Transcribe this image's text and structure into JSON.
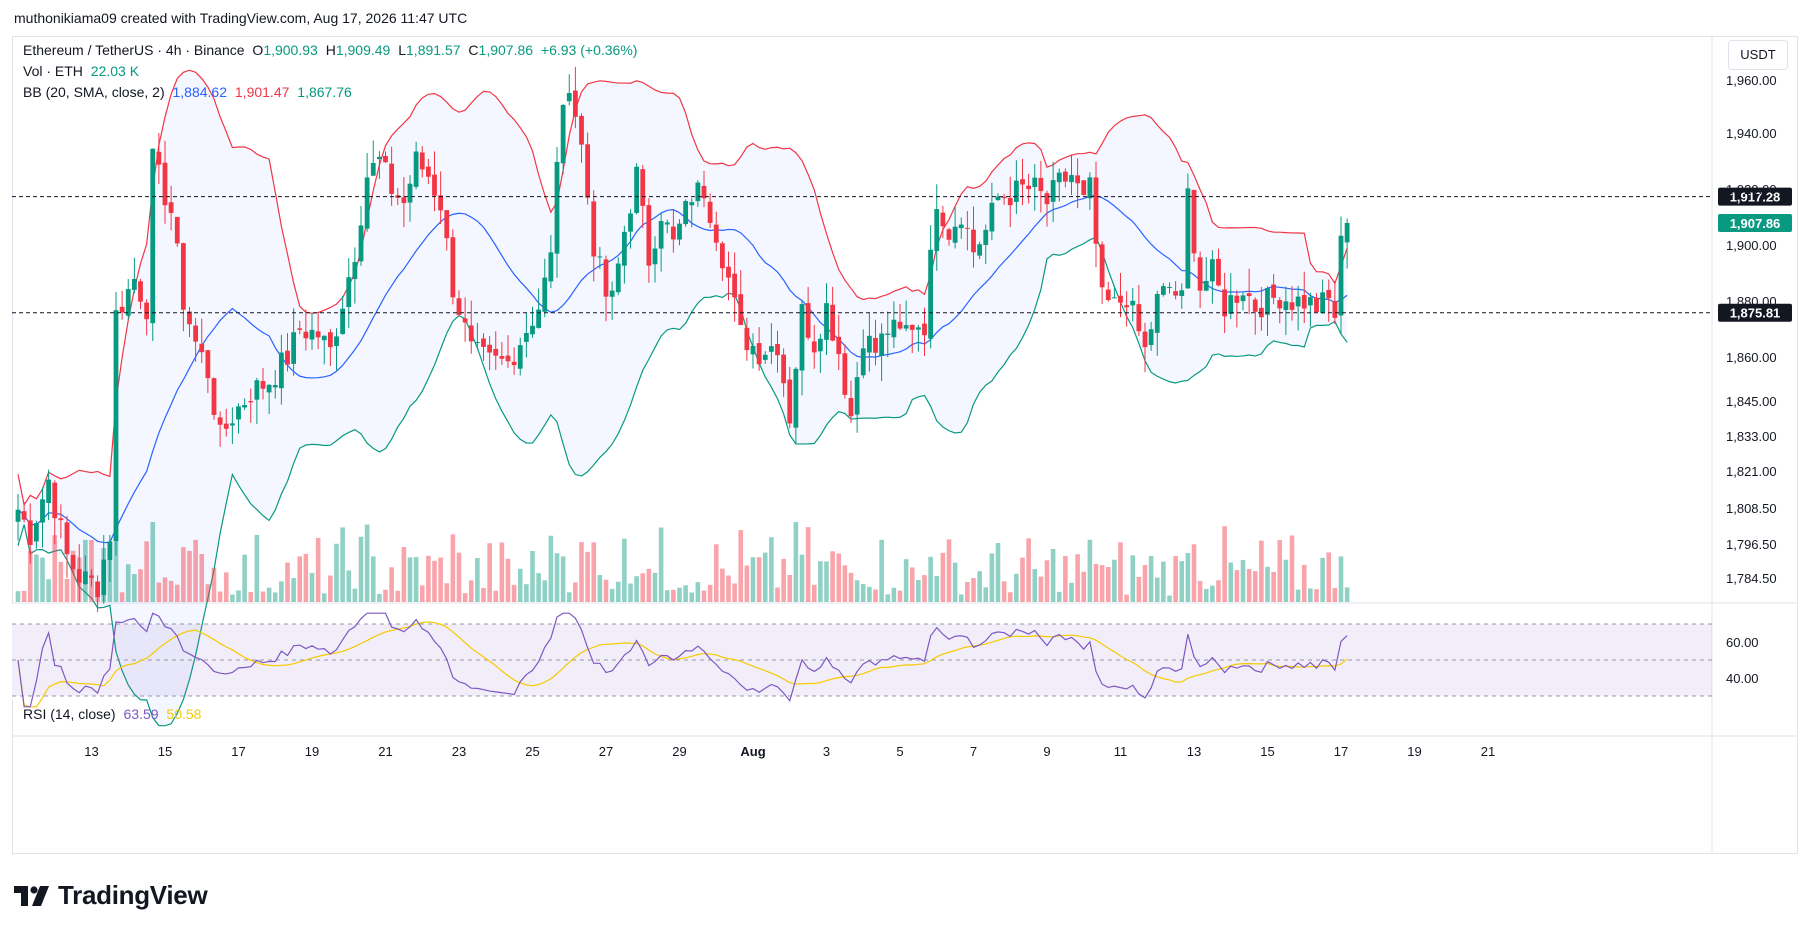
{
  "header": {
    "byline": "muthonikiama09 created with TradingView.com, Aug 17, 2026 11:47 UTC"
  },
  "legend": {
    "symbol": "Ethereum / TetherUS · 4h · Binance",
    "o_label": "O",
    "o_value": "1,900.93",
    "h_label": "H",
    "h_value": "1,909.49",
    "l_label": "L",
    "l_value": "1,891.57",
    "c_label": "C",
    "c_value": "1,907.86",
    "change": "+6.93 (+0.36%)",
    "vol_label": "Vol · ETH",
    "vol_value": "22.03 K",
    "bb_label": "BB (20, SMA, close, 2)",
    "bb_basis": "1,884.62",
    "bb_upper": "1,901.47",
    "bb_lower": "1,867.76",
    "rsi_label": "RSI (14, close)",
    "rsi_value": "63.59",
    "rsi_ma": "50.58"
  },
  "toolbar": {
    "currency": "USDT"
  },
  "footer": {
    "brand": "TradingView"
  },
  "colors": {
    "up": "#089981",
    "down": "#f23645",
    "bb_basis": "#2962ff",
    "bb_upper": "#f23645",
    "bb_lower": "#089981",
    "rsi": "#7e57c2",
    "rsi_ma": "#f7c900"
  },
  "chart_data": {
    "type": "candlestick",
    "price_axis": {
      "labels": [
        "1,960.00",
        "1,940.00",
        "1,920.00",
        "1,900.00",
        "1,880.00",
        "1,860.00",
        "1,845.00",
        "1,833.00",
        "1,821.00",
        "1,808.50",
        "1,796.50",
        "1,784.50"
      ],
      "values": [
        1960,
        1940,
        1920,
        1900,
        1880,
        1860,
        1845,
        1833,
        1821,
        1808.5,
        1796.5,
        1784.5
      ],
      "scale": "log"
    },
    "time_axis": {
      "labels": [
        "13",
        "15",
        "17",
        "19",
        "21",
        "23",
        "25",
        "27",
        "29",
        "Aug",
        "3",
        "5",
        "7",
        "9",
        "11",
        "13",
        "15",
        "17",
        "19",
        "21"
      ],
      "bar_index": [
        12,
        24,
        36,
        48,
        60,
        72,
        84,
        96,
        108,
        120,
        132,
        144,
        156,
        168,
        180,
        192,
        204,
        216,
        228,
        240
      ]
    },
    "price_lines": [
      {
        "value": 1917.28,
        "label": "1,917.28",
        "style": "dashed"
      },
      {
        "value": 1875.81,
        "label": "1,875.81",
        "style": "dashed"
      }
    ],
    "last_price": {
      "value": 1907.86,
      "label": "1,907.86"
    },
    "rsi_axis": {
      "labels": [
        "60.00",
        "40.00"
      ],
      "values": [
        60,
        40
      ],
      "band": [
        30,
        70
      ],
      "mid": 50
    },
    "bar_count": 218,
    "anchors": [
      [
        0,
        1808
      ],
      [
        2,
        1800
      ],
      [
        5,
        1818
      ],
      [
        8,
        1792
      ],
      [
        10,
        1785
      ],
      [
        13,
        1782
      ],
      [
        15,
        1800
      ],
      [
        16,
        1875
      ],
      [
        19,
        1888
      ],
      [
        21,
        1878
      ],
      [
        22,
        1930
      ],
      [
        25,
        1912
      ],
      [
        27,
        1880
      ],
      [
        29,
        1865
      ],
      [
        31,
        1855
      ],
      [
        33,
        1832
      ],
      [
        35,
        1840
      ],
      [
        38,
        1848
      ],
      [
        41,
        1852
      ],
      [
        44,
        1860
      ],
      [
        46,
        1870
      ],
      [
        49,
        1868
      ],
      [
        51,
        1862
      ],
      [
        53,
        1880
      ],
      [
        55,
        1898
      ],
      [
        57,
        1925
      ],
      [
        59,
        1930
      ],
      [
        61,
        1920
      ],
      [
        63,
        1915
      ],
      [
        65,
        1930
      ],
      [
        67,
        1925
      ],
      [
        69,
        1915
      ],
      [
        71,
        1885
      ],
      [
        74,
        1862
      ],
      [
        77,
        1858
      ],
      [
        80,
        1858
      ],
      [
        83,
        1870
      ],
      [
        85,
        1878
      ],
      [
        87,
        1895
      ],
      [
        88,
        1932
      ],
      [
        90,
        1960
      ],
      [
        92,
        1935
      ],
      [
        94,
        1900
      ],
      [
        96,
        1882
      ],
      [
        97,
        1880
      ],
      [
        99,
        1905
      ],
      [
        101,
        1925
      ],
      [
        103,
        1895
      ],
      [
        105,
        1912
      ],
      [
        107,
        1900
      ],
      [
        110,
        1918
      ],
      [
        112,
        1920
      ],
      [
        114,
        1905
      ],
      [
        116,
        1888
      ],
      [
        118,
        1868
      ],
      [
        121,
        1862
      ],
      [
        124,
        1865
      ],
      [
        126,
        1840
      ],
      [
        128,
        1876
      ],
      [
        130,
        1865
      ],
      [
        132,
        1878
      ],
      [
        134,
        1862
      ],
      [
        136,
        1840
      ],
      [
        138,
        1868
      ],
      [
        140,
        1862
      ],
      [
        142,
        1870
      ],
      [
        144,
        1868
      ],
      [
        146,
        1872
      ],
      [
        148,
        1872
      ],
      [
        150,
        1917
      ],
      [
        152,
        1905
      ],
      [
        154,
        1912
      ],
      [
        156,
        1898
      ],
      [
        158,
        1905
      ],
      [
        160,
        1917
      ],
      [
        162,
        1918
      ],
      [
        164,
        1920
      ],
      [
        166,
        1920
      ],
      [
        168,
        1915
      ],
      [
        170,
        1922
      ],
      [
        172,
        1925
      ],
      [
        174,
        1915
      ],
      [
        175,
        1920
      ],
      [
        177,
        1880
      ],
      [
        179,
        1878
      ],
      [
        181,
        1882
      ],
      [
        184,
        1862
      ],
      [
        186,
        1880
      ],
      [
        188,
        1885
      ],
      [
        190,
        1880
      ],
      [
        191,
        1918
      ],
      [
        193,
        1885
      ],
      [
        195,
        1890
      ],
      [
        197,
        1878
      ],
      [
        200,
        1885
      ],
      [
        202,
        1878
      ],
      [
        204,
        1880
      ],
      [
        206,
        1882
      ],
      [
        208,
        1880
      ],
      [
        210,
        1880
      ],
      [
        212,
        1878
      ],
      [
        214,
        1880
      ],
      [
        215,
        1875
      ],
      [
        216,
        1900
      ],
      [
        217,
        1907.86
      ]
    ],
    "bollinger": {
      "length": 20,
      "stddev": 2,
      "basis": 1884.62,
      "upper": 1901.47,
      "lower": 1867.76
    },
    "rsi": {
      "length": 14,
      "value": 63.59,
      "ma": 50.58
    }
  }
}
